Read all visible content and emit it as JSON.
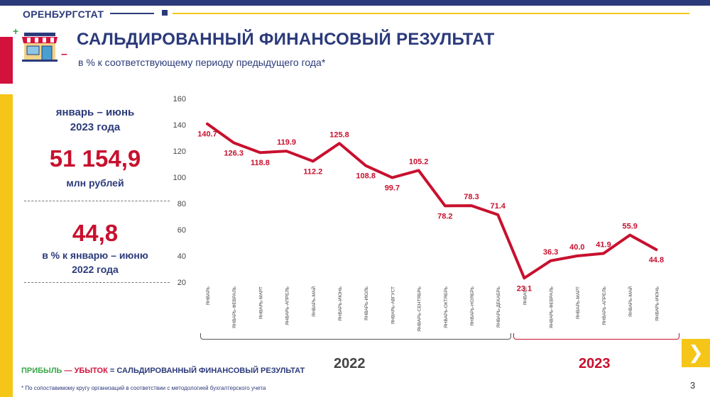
{
  "header": {
    "brand": "ОРЕНБУРГСТАТ",
    "title": "САЛЬДИРОВАННЫЙ ФИНАНСОВЫЙ РЕЗУЛЬТАТ",
    "subtitle": "в % к  соответствующему периоду предыдущего года*",
    "plus_sign": "+",
    "minus_sign": "–"
  },
  "kpi": {
    "period_line1": "январь – июнь",
    "period_line2": "2023 года",
    "value": "51 154,9",
    "unit": "млн рублей",
    "pct_value": "44,8",
    "pct_line1": "в % к январю – июню",
    "pct_line2": "2022 года"
  },
  "colors": {
    "line": "#c8102e",
    "navy": "#2b3a7a",
    "yellow": "#f5c518",
    "green": "#3aa64a",
    "red": "#d3113d"
  },
  "chart_data": {
    "type": "line",
    "categories": [
      "ЯНВАРЬ",
      "ЯНВАРЬ-ФЕВРАЛЬ",
      "ЯНВАРЬ-МАРТ",
      "ЯНВАРЬ-АПРЕЛЬ",
      "ЯНВАРЬ-МАЙ",
      "ЯНВАРЬ-ИЮНЬ",
      "ЯНВАРЬ-ИЮЛЬ",
      "ЯНВАРЬ-АВГУСТ",
      "ЯНВАРЬ-СЕНТЯБРЬ",
      "ЯНВАРЬ-ОКТЯБРЬ",
      "ЯНВАРЬ-НОЯБРЬ",
      "ЯНВАРЬ-ДЕКАБРЬ",
      "ЯНВАРЬ",
      "ЯНВАРЬ-ФЕВРАЛЬ",
      "ЯНВАРЬ-МАРТ",
      "ЯНВАРЬ-АПРЕЛЬ",
      "ЯНВАРЬ-МАЙ",
      "ЯНВАРЬ-ИЮНЬ"
    ],
    "values": [
      140.7,
      126.3,
      118.8,
      119.9,
      112.2,
      125.8,
      108.8,
      99.7,
      105.2,
      78.2,
      78.3,
      71.4,
      23.1,
      36.3,
      40.0,
      41.9,
      55.9,
      44.8
    ],
    "data_labels": [
      "140.7",
      "126.3",
      "118.8",
      "119.9",
      "112.2",
      "125.8",
      "108.8",
      "99.7",
      "105.2",
      "78.2",
      "78.3",
      "71.4",
      "23.1",
      "36.3",
      "40.0",
      "41.9",
      "55.9",
      "44.8"
    ],
    "label_position": [
      "below",
      "below",
      "below",
      "above",
      "below",
      "above",
      "below",
      "below",
      "above",
      "below",
      "above",
      "above",
      "below",
      "above",
      "above",
      "above",
      "above",
      "below"
    ],
    "groups": [
      {
        "label": "2022",
        "from": 0,
        "to": 11
      },
      {
        "label": "2023",
        "from": 12,
        "to": 17
      }
    ],
    "yticks": [
      "20",
      "40",
      "60",
      "80",
      "100",
      "120",
      "140",
      "160"
    ],
    "ylim": [
      20,
      160
    ],
    "grid": false
  },
  "legend": {
    "profit": "ПРИБЫЛЬ",
    "dash": " — ",
    "loss": "УБЫТОК",
    "rest": " = САЛЬДИРОВАННЫЙ ФИНАНСОВЫЙ РЕЗУЛЬТАТ"
  },
  "footnote": "* По сопоставимому кругу организаций в соответствии с методологией бухгалтерского учета",
  "page_number": "3",
  "icons": {
    "shop": "shop-icon",
    "next": "chevron-right-icon"
  }
}
